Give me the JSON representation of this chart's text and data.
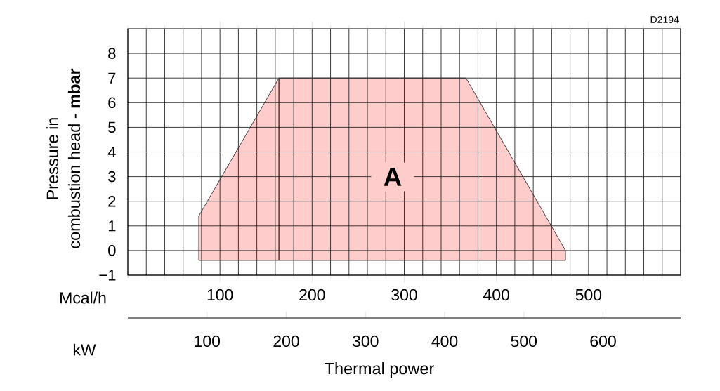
{
  "chart_data": {
    "type": "area",
    "xlabel": "Mcal/h",
    "x2label": "kW",
    "ylabel": "Pressure in\ncombustion head - **mbar**",
    "annotations": [
      "D2194",
      "Thermal power",
      "A"
    ],
    "xlim": [
      0,
      600
    ],
    "xticks": [
      {
        "value": 0,
        "label": null
      },
      {
        "value": 20,
        "label": null
      },
      {
        "value": 40,
        "label": null
      },
      {
        "value": 60,
        "label": null
      },
      {
        "value": 80,
        "label": null
      },
      100,
      {
        "value": 120,
        "label": null
      },
      {
        "value": 140,
        "label": null
      },
      {
        "value": 160,
        "label": null
      },
      {
        "value": 180,
        "label": null
      },
      200,
      {
        "value": 220,
        "label": null
      },
      {
        "value": 240,
        "label": null
      },
      {
        "value": 260,
        "label": null
      },
      {
        "value": 280,
        "label": null
      },
      300,
      {
        "value": 320,
        "label": null
      },
      {
        "value": 340,
        "label": null
      },
      {
        "value": 360,
        "label": null
      },
      {
        "value": 380,
        "label": null
      },
      400,
      {
        "value": 420,
        "label": null
      },
      {
        "value": 440,
        "label": null
      },
      {
        "value": 460,
        "label": null
      },
      {
        "value": 480,
        "label": null
      },
      500,
      {
        "value": 520,
        "label": null
      },
      {
        "value": 540,
        "label": null
      },
      {
        "value": 560,
        "label": null
      },
      {
        "value": 580,
        "label": null
      },
      {
        "value": 600,
        "label": null
      }
    ],
    "x2lim": [
      0,
      698
    ],
    "x2ticks": [
      100,
      200,
      300,
      400,
      500,
      600
    ],
    "ylim": [
      -1,
      9
    ],
    "yticks": [
      {
        "value": -1,
        "label": "−1"
      },
      0,
      1,
      2,
      3,
      4,
      5,
      6,
      7,
      8
    ],
    "grid": true,
    "series": [
      {
        "color": "#ffcccc",
        "x": [
          77,
          77,
          164,
          367,
          475,
          475
        ],
        "values": [
          -0.4,
          1.4,
          7,
          7,
          0,
          -0.4
        ]
      },
      {
        "type": "line",
        "color": "#3c1e1e",
        "x": [
          164,
          164
        ],
        "values": [
          7,
          -0.4
        ]
      }
    ]
  }
}
